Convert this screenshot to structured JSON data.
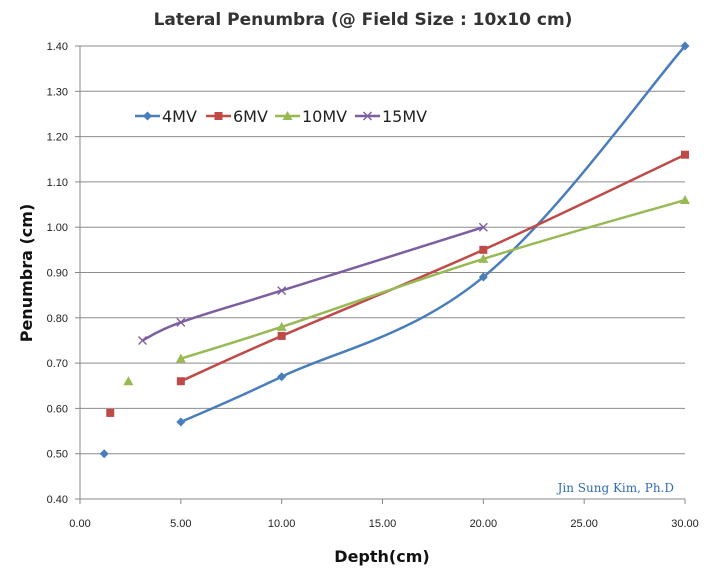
{
  "chart_data": {
    "type": "line",
    "title": "Lateral Penumbra (@ Field Size : 10x10 cm)",
    "xlabel": "Depth(cm)",
    "ylabel": "Penumbra (cm)",
    "xlim": [
      0,
      30
    ],
    "ylim": [
      0.4,
      1.4
    ],
    "xticks": [
      "0.00",
      "5.00",
      "10.00",
      "15.00",
      "20.00",
      "25.00",
      "30.00"
    ],
    "yticks": [
      "0.40",
      "0.50",
      "0.60",
      "0.70",
      "0.80",
      "0.90",
      "1.00",
      "1.10",
      "1.20",
      "1.30",
      "1.40"
    ],
    "grid": true,
    "legend_position": "top-left",
    "annotation": "Jin Sung Kim, Ph.D",
    "series": [
      {
        "name": "4MV",
        "color": "#4a7ebb",
        "marker": "diamond",
        "points": [
          [
            1.2,
            0.5
          ],
          [
            5,
            0.57
          ],
          [
            10,
            0.67
          ],
          [
            20,
            0.89
          ],
          [
            30,
            1.4
          ]
        ],
        "line_from": 1
      },
      {
        "name": "6MV",
        "color": "#be4b48",
        "marker": "square",
        "points": [
          [
            1.5,
            0.59
          ],
          [
            5,
            0.66
          ],
          [
            10,
            0.76
          ],
          [
            20,
            0.95
          ],
          [
            30,
            1.16
          ]
        ],
        "line_from": 1
      },
      {
        "name": "10MV",
        "color": "#98b954",
        "marker": "triangle",
        "points": [
          [
            2.4,
            0.66
          ],
          [
            5,
            0.71
          ],
          [
            10,
            0.78
          ],
          [
            20,
            0.93
          ],
          [
            30,
            1.06
          ]
        ],
        "line_from": 1
      },
      {
        "name": "15MV",
        "color": "#7d5fa0",
        "marker": "x",
        "points": [
          [
            3.1,
            0.75
          ],
          [
            5,
            0.79
          ],
          [
            10,
            0.86
          ],
          [
            20,
            1.0
          ]
        ],
        "line_from": 0
      }
    ]
  }
}
